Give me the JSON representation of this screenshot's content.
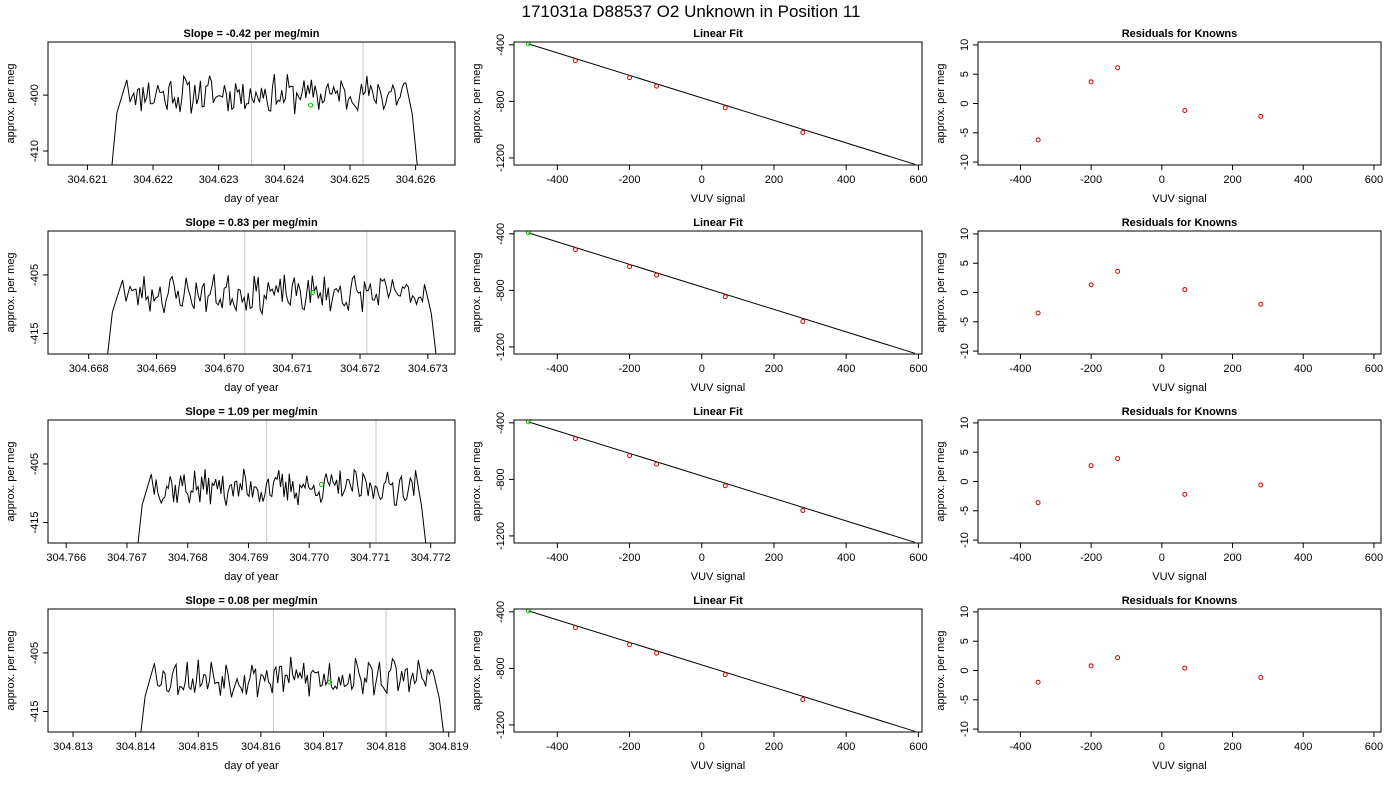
{
  "main_title": "171031a      D88537   O2 Unknown in Position  11",
  "chart_data": [
    {
      "type": "line",
      "panel": "timeseries",
      "row": 1,
      "title": "Slope =  -0.42  per meg/min",
      "xlabel": "day of year",
      "ylabel": "approx. per meg",
      "xlim": [
        304.6204,
        304.6266
      ],
      "ylim": [
        -412.5,
        -390.5
      ],
      "xticks": [
        "304.621",
        "304.622",
        "304.623",
        "304.624",
        "304.625",
        "304.626"
      ],
      "xtick_values": [
        304.621,
        304.622,
        304.623,
        304.624,
        304.625,
        304.626
      ],
      "yticks": [
        "-410",
        "-400"
      ],
      "ytick_values": [
        -410,
        -400
      ],
      "vlines": [
        304.6235,
        304.6252
      ],
      "start": 304.6214,
      "end": 304.626,
      "level": -399.8,
      "amp": 2.8,
      "seed": 11,
      "marker": {
        "x": 304.6244,
        "y": -401.8,
        "color": "#00cc00"
      }
    },
    {
      "type": "scatter",
      "panel": "linear-fit",
      "row": 1,
      "title": "Linear Fit",
      "xlabel": "VUV signal",
      "ylabel": "approx. per meg",
      "xlim": [
        -520,
        610
      ],
      "ylim": [
        -1250,
        -380
      ],
      "xticks": [
        "-400",
        "-200",
        "0",
        "200",
        "400",
        "600"
      ],
      "xtick_values": [
        -400,
        -200,
        0,
        200,
        400,
        600
      ],
      "yticks": [
        "-400",
        "-800",
        "-1200"
      ],
      "ytick_values": [
        -400,
        -800,
        -1200
      ],
      "line": {
        "x": [
          -480,
          590
        ],
        "y": [
          -393,
          -1245
        ]
      },
      "points": {
        "x": [
          -350,
          -200,
          -125,
          65,
          280
        ],
        "y": [
          -512,
          -632,
          -692,
          -845,
          -1020
        ],
        "color": "#cc0000"
      },
      "green_point": {
        "x": -480,
        "y": -393,
        "color": "#00cc00"
      }
    },
    {
      "type": "scatter",
      "panel": "residuals",
      "row": 1,
      "title": "Residuals for Knowns",
      "xlabel": "VUV signal",
      "ylabel": "approx. per meg",
      "xlim": [
        -520,
        620
      ],
      "ylim": [
        -10.5,
        10.5
      ],
      "xticks": [
        "-400",
        "-200",
        "0",
        "200",
        "400",
        "600"
      ],
      "xtick_values": [
        -400,
        -200,
        0,
        200,
        400,
        600
      ],
      "yticks": [
        "-10",
        "-5",
        "0",
        "5",
        "10"
      ],
      "ytick_values": [
        -10,
        -5,
        0,
        5,
        10
      ],
      "points": {
        "x": [
          -350,
          -200,
          -125,
          65,
          280
        ],
        "y": [
          -6.2,
          3.7,
          6.1,
          -1.2,
          -2.2
        ],
        "color": "#cc0000"
      }
    },
    {
      "type": "line",
      "panel": "timeseries",
      "row": 2,
      "title": "Slope =  0.83  per meg/min",
      "xlabel": "day of year",
      "ylabel": "approx. per meg",
      "xlim": [
        304.6674,
        304.6734
      ],
      "ylim": [
        -418.5,
        -397.5
      ],
      "xticks": [
        "304.668",
        "304.669",
        "304.670",
        "304.671",
        "304.672",
        "304.673"
      ],
      "xtick_values": [
        304.668,
        304.669,
        304.67,
        304.671,
        304.672,
        304.673
      ],
      "yticks": [
        "-415",
        "-405"
      ],
      "ytick_values": [
        -415,
        -405
      ],
      "vlines": [
        304.6703,
        304.6721
      ],
      "start": 304.6683,
      "end": 304.6731,
      "level": -408.2,
      "amp": 2.6,
      "seed": 23,
      "marker": {
        "x": 304.6713,
        "y": -408.0,
        "color": "#00cc00"
      }
    },
    {
      "type": "scatter",
      "panel": "linear-fit",
      "row": 2,
      "title": "Linear Fit",
      "xlabel": "VUV signal",
      "ylabel": "approx. per meg",
      "xlim": [
        -520,
        610
      ],
      "ylim": [
        -1250,
        -380
      ],
      "xticks": [
        "-400",
        "-200",
        "0",
        "200",
        "400",
        "600"
      ],
      "xtick_values": [
        -400,
        -200,
        0,
        200,
        400,
        600
      ],
      "yticks": [
        "-400",
        "-800",
        "-1200"
      ],
      "ytick_values": [
        -400,
        -800,
        -1200
      ],
      "line": {
        "x": [
          -480,
          590
        ],
        "y": [
          -393,
          -1245
        ]
      },
      "points": {
        "x": [
          -350,
          -200,
          -125,
          65,
          280
        ],
        "y": [
          -512,
          -632,
          -692,
          -845,
          -1020
        ],
        "color": "#cc0000"
      },
      "green_point": {
        "x": -480,
        "y": -393,
        "color": "#00cc00"
      }
    },
    {
      "type": "scatter",
      "panel": "residuals",
      "row": 2,
      "title": "Residuals for Knowns",
      "xlabel": "VUV signal",
      "ylabel": "approx. per meg",
      "xlim": [
        -520,
        620
      ],
      "ylim": [
        -10.5,
        10.5
      ],
      "xticks": [
        "-400",
        "-200",
        "0",
        "200",
        "400",
        "600"
      ],
      "xtick_values": [
        -400,
        -200,
        0,
        200,
        400,
        600
      ],
      "yticks": [
        "-10",
        "-5",
        "0",
        "5",
        "10"
      ],
      "ytick_values": [
        -10,
        -5,
        0,
        5,
        10
      ],
      "points": {
        "x": [
          -350,
          -200,
          -125,
          65,
          280
        ],
        "y": [
          -3.5,
          1.3,
          3.6,
          0.5,
          -2.0
        ],
        "color": "#cc0000"
      }
    },
    {
      "type": "line",
      "panel": "timeseries",
      "row": 3,
      "title": "Slope =  1.09  per meg/min",
      "xlabel": "day of year",
      "ylabel": "approx. per meg",
      "xlim": [
        304.7657,
        304.7724
      ],
      "ylim": [
        -418.5,
        -397.5
      ],
      "xticks": [
        "304.766",
        "304.767",
        "304.768",
        "304.769",
        "304.770",
        "304.771",
        "304.772"
      ],
      "xtick_values": [
        304.766,
        304.767,
        304.768,
        304.769,
        304.77,
        304.771,
        304.772
      ],
      "yticks": [
        "-415",
        "-405"
      ],
      "ytick_values": [
        -415,
        -405
      ],
      "vlines": [
        304.7693,
        304.7711
      ],
      "start": 304.7672,
      "end": 304.7719,
      "level": -409.0,
      "amp": 2.5,
      "seed": 37,
      "marker": {
        "x": 304.7702,
        "y": -408.5,
        "color": "#00cc00"
      }
    },
    {
      "type": "scatter",
      "panel": "linear-fit",
      "row": 3,
      "title": "Linear Fit",
      "xlabel": "VUV signal",
      "ylabel": "approx. per meg",
      "xlim": [
        -520,
        610
      ],
      "ylim": [
        -1250,
        -380
      ],
      "xticks": [
        "-400",
        "-200",
        "0",
        "200",
        "400",
        "600"
      ],
      "xtick_values": [
        -400,
        -200,
        0,
        200,
        400,
        600
      ],
      "yticks": [
        "-400",
        "-800",
        "-1200"
      ],
      "ytick_values": [
        -400,
        -800,
        -1200
      ],
      "line": {
        "x": [
          -480,
          590
        ],
        "y": [
          -393,
          -1245
        ]
      },
      "points": {
        "x": [
          -350,
          -200,
          -125,
          65,
          280
        ],
        "y": [
          -512,
          -632,
          -692,
          -845,
          -1020
        ],
        "color": "#cc0000"
      },
      "green_point": {
        "x": -480,
        "y": -393,
        "color": "#00cc00"
      }
    },
    {
      "type": "scatter",
      "panel": "residuals",
      "row": 3,
      "title": "Residuals for Knowns",
      "xlabel": "VUV signal",
      "ylabel": "approx. per meg",
      "xlim": [
        -520,
        620
      ],
      "ylim": [
        -10.5,
        10.5
      ],
      "xticks": [
        "-400",
        "-200",
        "0",
        "200",
        "400",
        "600"
      ],
      "xtick_values": [
        -400,
        -200,
        0,
        200,
        400,
        600
      ],
      "yticks": [
        "-10",
        "-5",
        "0",
        "5",
        "10"
      ],
      "ytick_values": [
        -10,
        -5,
        0,
        5,
        10
      ],
      "points": {
        "x": [
          -350,
          -200,
          -125,
          65,
          280
        ],
        "y": [
          -3.6,
          2.7,
          3.9,
          -2.2,
          -0.6
        ],
        "color": "#cc0000"
      }
    },
    {
      "type": "line",
      "panel": "timeseries",
      "row": 4,
      "title": "Slope =  0.08  per meg/min",
      "xlabel": "day of year",
      "ylabel": "approx. per meg",
      "xlim": [
        304.8126,
        304.8191
      ],
      "ylim": [
        -418.5,
        -397.5
      ],
      "xticks": [
        "304.813",
        "304.814",
        "304.815",
        "304.816",
        "304.817",
        "304.818",
        "304.819"
      ],
      "xtick_values": [
        304.813,
        304.814,
        304.815,
        304.816,
        304.817,
        304.818,
        304.819
      ],
      "yticks": [
        "-415",
        "-405"
      ],
      "ytick_values": [
        -415,
        -405
      ],
      "vlines": [
        304.8162,
        304.818
      ],
      "start": 304.8141,
      "end": 304.8189,
      "level": -409.2,
      "amp": 2.7,
      "seed": 53,
      "marker": {
        "x": 304.8171,
        "y": -410.0,
        "color": "#00cc00"
      }
    },
    {
      "type": "scatter",
      "panel": "linear-fit",
      "row": 4,
      "title": "Linear Fit",
      "xlabel": "VUV signal",
      "ylabel": "approx. per meg",
      "xlim": [
        -520,
        610
      ],
      "ylim": [
        -1250,
        -380
      ],
      "xticks": [
        "-400",
        "-200",
        "0",
        "200",
        "400",
        "600"
      ],
      "xtick_values": [
        -400,
        -200,
        0,
        200,
        400,
        600
      ],
      "yticks": [
        "-400",
        "-800",
        "-1200"
      ],
      "ytick_values": [
        -400,
        -800,
        -1200
      ],
      "line": {
        "x": [
          -480,
          590
        ],
        "y": [
          -393,
          -1245
        ]
      },
      "points": {
        "x": [
          -350,
          -200,
          -125,
          65,
          280
        ],
        "y": [
          -512,
          -632,
          -692,
          -845,
          -1020
        ],
        "color": "#cc0000"
      },
      "green_point": {
        "x": -480,
        "y": -393,
        "color": "#00cc00"
      }
    },
    {
      "type": "scatter",
      "panel": "residuals",
      "row": 4,
      "title": "Residuals for Knowns",
      "xlabel": "VUV signal",
      "ylabel": "approx. per meg",
      "xlim": [
        -520,
        620
      ],
      "ylim": [
        -10.5,
        10.5
      ],
      "xticks": [
        "-400",
        "-200",
        "0",
        "200",
        "400",
        "600"
      ],
      "xtick_values": [
        -400,
        -200,
        0,
        200,
        400,
        600
      ],
      "yticks": [
        "-10",
        "-5",
        "0",
        "5",
        "10"
      ],
      "ytick_values": [
        -10,
        -5,
        0,
        5,
        10
      ],
      "points": {
        "x": [
          -350,
          -200,
          -125,
          65,
          280
        ],
        "y": [
          -2.0,
          0.8,
          2.2,
          0.4,
          -1.2
        ],
        "color": "#cc0000"
      }
    }
  ]
}
